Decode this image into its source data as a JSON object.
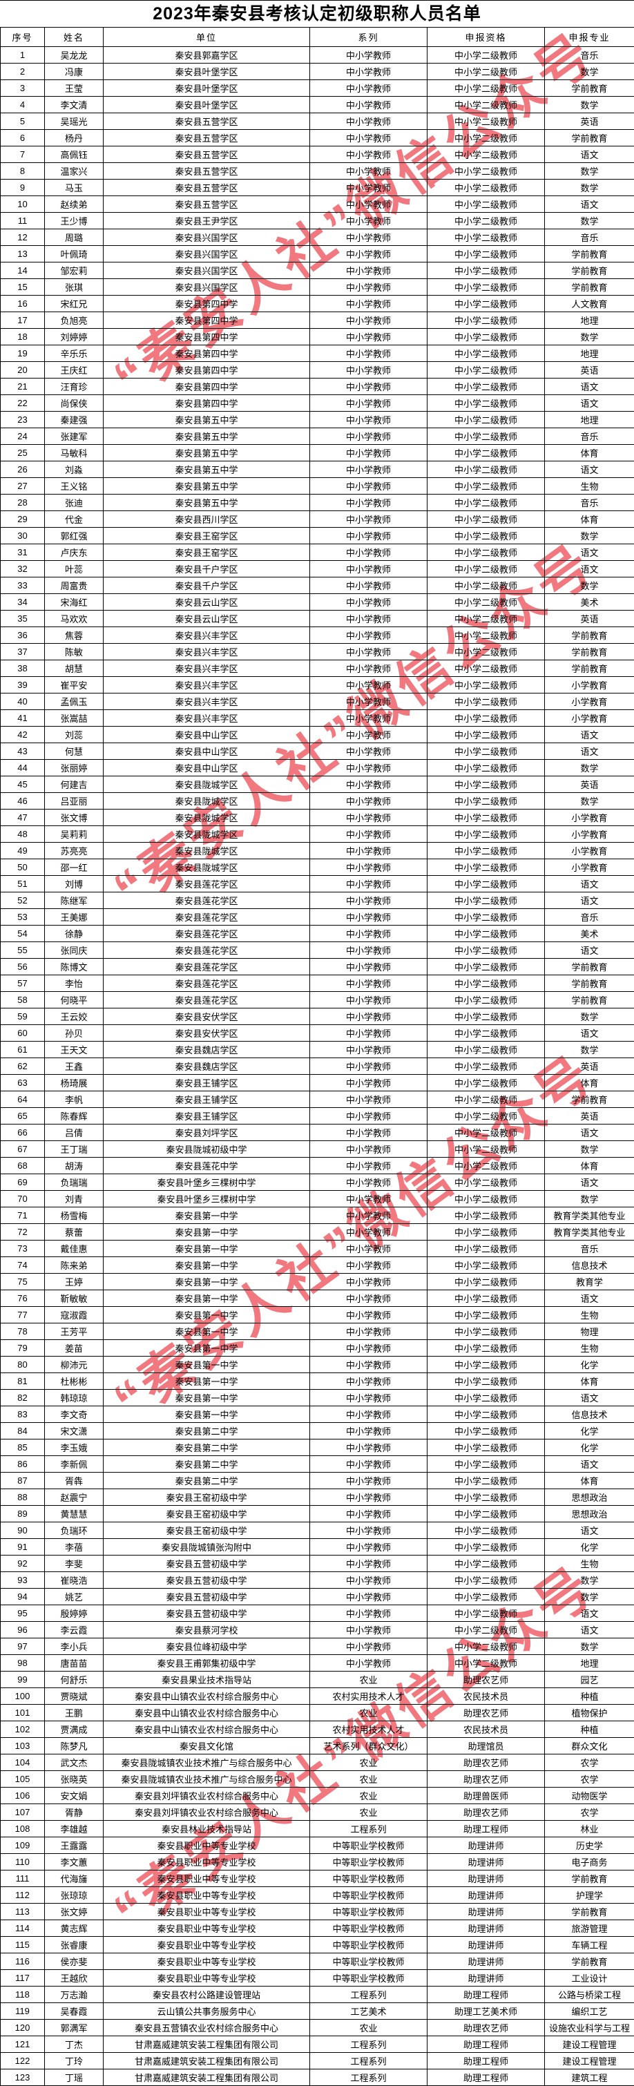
{
  "page": {
    "title": "2023年秦安县考核认定初级职称人员名单"
  },
  "watermark": {
    "text": "“秦安人社”微信公众号",
    "color": "#f05a64"
  },
  "table": {
    "columns": [
      "序号",
      "姓名",
      "单位",
      "系列",
      "申报资格",
      "申报专业"
    ],
    "rows": [
      [
        "1",
        "吴龙龙",
        "秦安县郭嘉学区",
        "中小学教师",
        "中小学二级教师",
        "音乐"
      ],
      [
        "2",
        "冯康",
        "秦安县叶堡学区",
        "中小学教师",
        "中小学二级教师",
        "数学"
      ],
      [
        "3",
        "王莹",
        "秦安县叶堡学区",
        "中小学教师",
        "中小学二级教师",
        "学前教育"
      ],
      [
        "4",
        "李文清",
        "秦安县叶堡学区",
        "中小学教师",
        "中小学二级教师",
        "数学"
      ],
      [
        "5",
        "吴瑶光",
        "秦安县五营学区",
        "中小学教师",
        "中小学二级教师",
        "英语"
      ],
      [
        "6",
        "杨丹",
        "秦安县五营学区",
        "中小学教师",
        "中小学二级教师",
        "学前教育"
      ],
      [
        "7",
        "高佩钰",
        "秦安县五营学区",
        "中小学教师",
        "中小学二级教师",
        "语文"
      ],
      [
        "8",
        "温家兴",
        "秦安县五营学区",
        "中小学教师",
        "中小学二级教师",
        "数学"
      ],
      [
        "9",
        "马玉",
        "秦安县五营学区",
        "中小学教师",
        "中小学二级教师",
        "数学"
      ],
      [
        "10",
        "赵续弟",
        "秦安县五营学区",
        "中小学教师",
        "中小学二级教师",
        "语文"
      ],
      [
        "11",
        "王少博",
        "秦安县王尹学区",
        "中小学教师",
        "中小学二级教师",
        "数学"
      ],
      [
        "12",
        "周璐",
        "秦安县兴国学区",
        "中小学教师",
        "中小学二级教师",
        "音乐"
      ],
      [
        "13",
        "叶佩琦",
        "秦安县兴国学区",
        "中小学教师",
        "中小学二级教师",
        "学前教育"
      ],
      [
        "14",
        "邹宏莉",
        "秦安县兴国学区",
        "中小学教师",
        "中小学二级教师",
        "学前教育"
      ],
      [
        "15",
        "张琪",
        "秦安县兴国学区",
        "中小学教师",
        "中小学二级教师",
        "学前教育"
      ],
      [
        "16",
        "宋红兄",
        "秦安县第四中学",
        "中小学教师",
        "中小学二级教师",
        "人文教育"
      ],
      [
        "17",
        "负旭亮",
        "秦安县第四中学",
        "中小学教师",
        "中小学二级教师",
        "地理"
      ],
      [
        "18",
        "刘婷婷",
        "秦安县第四中学",
        "中小学教师",
        "中小学二级教师",
        "数学"
      ],
      [
        "19",
        "辛乐乐",
        "秦安县第四中学",
        "中小学教师",
        "中小学二级教师",
        "地理"
      ],
      [
        "20",
        "王庆红",
        "秦安县第四中学",
        "中小学教师",
        "中小学二级教师",
        "英语"
      ],
      [
        "21",
        "汪育珍",
        "秦安县第四中学",
        "中小学教师",
        "中小学二级教师",
        "语文"
      ],
      [
        "22",
        "尚保侠",
        "秦安县第四中学",
        "中小学教师",
        "中小学二级教师",
        "语文"
      ],
      [
        "23",
        "秦建强",
        "秦安县第五中学",
        "中小学教师",
        "中小学二级教师",
        "地理"
      ],
      [
        "24",
        "张建军",
        "秦安县第五中学",
        "中小学教师",
        "中小学二级教师",
        "音乐"
      ],
      [
        "25",
        "马敏科",
        "秦安县第五中学",
        "中小学教师",
        "中小学二级教师",
        "体育"
      ],
      [
        "26",
        "刘淼",
        "秦安县第五中学",
        "中小学教师",
        "中小学二级教师",
        "语文"
      ],
      [
        "27",
        "王义铭",
        "秦安县第五中学",
        "中小学教师",
        "中小学二级教师",
        "生物"
      ],
      [
        "28",
        "张迪",
        "秦安县第五中学",
        "中小学教师",
        "中小学二级教师",
        "音乐"
      ],
      [
        "29",
        "代金",
        "秦安县西川学区",
        "中小学教师",
        "中小学二级教师",
        "体育"
      ],
      [
        "30",
        "郭红强",
        "秦安县王窑学区",
        "中小学教师",
        "中小学二级教师",
        "数学"
      ],
      [
        "31",
        "卢庆东",
        "秦安县王窑学区",
        "中小学教师",
        "中小学二级教师",
        "语文"
      ],
      [
        "32",
        "叶蕊",
        "秦安县千户学区",
        "中小学教师",
        "中小学二级教师",
        "语文"
      ],
      [
        "33",
        "周富贵",
        "秦安县千户学区",
        "中小学教师",
        "中小学二级教师",
        "数学"
      ],
      [
        "34",
        "宋海红",
        "秦安县云山学区",
        "中小学教师",
        "中小学二级教师",
        "美术"
      ],
      [
        "35",
        "马欢欢",
        "秦安县云山学区",
        "中小学教师",
        "中小学二级教师",
        "英语"
      ],
      [
        "36",
        "焦蓉",
        "秦安县兴丰学区",
        "中小学教师",
        "中小学二级教师",
        "学前教育"
      ],
      [
        "37",
        "陈敏",
        "秦安县兴丰学区",
        "中小学教师",
        "中小学二级教师",
        "学前教育"
      ],
      [
        "38",
        "胡慧",
        "秦安县兴丰学区",
        "中小学教师",
        "中小学二级教师",
        "学前教育"
      ],
      [
        "39",
        "崔平安",
        "秦安县兴丰学区",
        "中小学教师",
        "中小学二级教师",
        "小学教育"
      ],
      [
        "40",
        "孟佩玉",
        "秦安县兴丰学区",
        "中小学教师",
        "中小学二级教师",
        "小学教育"
      ],
      [
        "41",
        "张嵩喆",
        "秦安县兴丰学区",
        "中小学教师",
        "中小学二级教师",
        "小学教育"
      ],
      [
        "42",
        "刘蕊",
        "秦安县中山学区",
        "中小学教师",
        "中小学二级教师",
        "语文"
      ],
      [
        "43",
        "何慧",
        "秦安县中山学区",
        "中小学教师",
        "中小学二级教师",
        "语文"
      ],
      [
        "44",
        "张丽婷",
        "秦安县中山学区",
        "中小学教师",
        "中小学二级教师",
        "数学"
      ],
      [
        "45",
        "何建吉",
        "秦安县陇城学区",
        "中小学教师",
        "中小学二级教师",
        "英语"
      ],
      [
        "46",
        "吕亚丽",
        "秦安县陇城学区",
        "中小学教师",
        "中小学二级教师",
        "数学"
      ],
      [
        "47",
        "张文博",
        "秦安县陇城学区",
        "中小学教师",
        "中小学二级教师",
        "小学教育"
      ],
      [
        "48",
        "吴莉莉",
        "秦安县陇城学区",
        "中小学教师",
        "中小学二级教师",
        "小学教育"
      ],
      [
        "49",
        "苏亮亮",
        "秦安县陇城学区",
        "中小学教师",
        "中小学二级教师",
        "小学教育"
      ],
      [
        "50",
        "邵一红",
        "秦安县陇城学区",
        "中小学教师",
        "中小学二级教师",
        "小学教育"
      ],
      [
        "51",
        "刘博",
        "秦安县莲花学区",
        "中小学教师",
        "中小学二级教师",
        "语文"
      ],
      [
        "52",
        "陈继军",
        "秦安县莲花学区",
        "中小学教师",
        "中小学二级教师",
        "语文"
      ],
      [
        "53",
        "王美娜",
        "秦安县莲花学区",
        "中小学教师",
        "中小学二级教师",
        "音乐"
      ],
      [
        "54",
        "徐静",
        "秦安县莲花学区",
        "中小学教师",
        "中小学二级教师",
        "美术"
      ],
      [
        "55",
        "张同庆",
        "秦安县莲花学区",
        "中小学教师",
        "中小学二级教师",
        "语文"
      ],
      [
        "56",
        "陈博文",
        "秦安县莲花学区",
        "中小学教师",
        "中小学二级教师",
        "学前教育"
      ],
      [
        "57",
        "李怡",
        "秦安县莲花学区",
        "中小学教师",
        "中小学二级教师",
        "学前教育"
      ],
      [
        "58",
        "何晓平",
        "秦安县莲花学区",
        "中小学教师",
        "中小学二级教师",
        "学前教育"
      ],
      [
        "59",
        "王云姣",
        "秦安县安伏学区",
        "中小学教师",
        "中小学二级教师",
        "数学"
      ],
      [
        "60",
        "孙贝",
        "秦安县安伏学区",
        "中小学教师",
        "中小学二级教师",
        "语文"
      ],
      [
        "61",
        "王天文",
        "秦安县魏店学区",
        "中小学教师",
        "中小学二级教师",
        "数学"
      ],
      [
        "62",
        "王鑫",
        "秦安县魏店学区",
        "中小学教师",
        "中小学二级教师",
        "英语"
      ],
      [
        "63",
        "杨琦展",
        "秦安县王铺学区",
        "中小学教师",
        "中小学二级教师",
        "体育"
      ],
      [
        "64",
        "李帆",
        "秦安县王铺学区",
        "中小学教师",
        "中小学二级教师",
        "学前教育"
      ],
      [
        "65",
        "陈春辉",
        "秦安县王铺学区",
        "中小学教师",
        "中小学二级教师",
        "英语"
      ],
      [
        "66",
        "吕倩",
        "秦安县刘坪学区",
        "中小学教师",
        "中小学二级教师",
        "语文"
      ],
      [
        "67",
        "王丁瑞",
        "秦安县陇城初级中学",
        "中小学教师",
        "中小学二级教师",
        "数学"
      ],
      [
        "68",
        "胡涛",
        "秦安县莲花中学",
        "中小学教师",
        "中小学二级教师",
        "体育"
      ],
      [
        "69",
        "负瑞瑞",
        "秦安县叶堡乡三棵树中学",
        "中小学教师",
        "中小学二级教师",
        "语文"
      ],
      [
        "70",
        "刘青",
        "秦安县叶堡乡三棵树中学",
        "中小学教师",
        "中小学二级教师",
        "数学"
      ],
      [
        "71",
        "杨雪梅",
        "秦安县第一中学",
        "中小学教师",
        "中小学二级教师",
        "教育学类其他专业"
      ],
      [
        "72",
        "蔡蕾",
        "秦安县第一中学",
        "中小学教师",
        "中小学二级教师",
        "教育学类其他专业"
      ],
      [
        "73",
        "戴佳惠",
        "秦安县第一中学",
        "中小学教师",
        "中小学二级教师",
        "音乐"
      ],
      [
        "74",
        "陈来弟",
        "秦安县第一中学",
        "中小学教师",
        "中小学二级教师",
        "信息技术"
      ],
      [
        "75",
        "王婷",
        "秦安县第一中学",
        "中小学教师",
        "中小学二级教师",
        "教育学"
      ],
      [
        "76",
        "靳敏敏",
        "秦安县第一中学",
        "中小学教师",
        "中小学二级教师",
        "语文"
      ],
      [
        "77",
        "寇淑霞",
        "秦安县第一中学",
        "中小学教师",
        "中小学二级教师",
        "生物"
      ],
      [
        "78",
        "王芳平",
        "秦安县第一中学",
        "中小学教师",
        "中小学二级教师",
        "物理"
      ],
      [
        "79",
        "姜苗",
        "秦安县第一中学",
        "中小学教师",
        "中小学二级教师",
        "生物"
      ],
      [
        "80",
        "柳沛元",
        "秦安县第一中学",
        "中小学教师",
        "中小学二级教师",
        "化学"
      ],
      [
        "81",
        "杜彬彬",
        "秦安县第一中学",
        "中小学教师",
        "中小学二级教师",
        "体育"
      ],
      [
        "82",
        "韩琼琼",
        "秦安县第一中学",
        "中小学教师",
        "中小学二级教师",
        "语文"
      ],
      [
        "83",
        "李文奇",
        "秦安县第一中学",
        "中小学教师",
        "中小学二级教师",
        "信息技术"
      ],
      [
        "84",
        "宋文潇",
        "秦安县第二中学",
        "中小学教师",
        "中小学二级教师",
        "化学"
      ],
      [
        "85",
        "李玉娥",
        "秦安县第二中学",
        "中小学教师",
        "中小学二级教师",
        "化学"
      ],
      [
        "86",
        "李新佩",
        "秦安县第二中学",
        "中小学教师",
        "中小学二级教师",
        "语文"
      ],
      [
        "87",
        "胥犇",
        "秦安县第二中学",
        "中小学教师",
        "中小学二级教师",
        "体育"
      ],
      [
        "88",
        "赵震宁",
        "秦安县王窑初级中学",
        "中小学教师",
        "中小学二级教师",
        "思想政治"
      ],
      [
        "89",
        "黄慧慧",
        "秦安县王窑初级中学",
        "中小学教师",
        "中小学二级教师",
        "思想政治"
      ],
      [
        "90",
        "负瑞环",
        "秦安县王窑初级中学",
        "中小学教师",
        "中小学二级教师",
        "语文"
      ],
      [
        "91",
        "李蓓",
        "秦安县陇城镇张沟附中",
        "中小学教师",
        "中小学二级教师",
        "化学"
      ],
      [
        "92",
        "李斐",
        "秦安县五营初级中学",
        "中小学教师",
        "中小学二级教师",
        "生物"
      ],
      [
        "93",
        "崔晓浩",
        "秦安县五营初级中学",
        "中小学教师",
        "中小学二级教师",
        "数学"
      ],
      [
        "94",
        "姚艺",
        "秦安县五营初级中学",
        "中小学教师",
        "中小学二级教师",
        "数学"
      ],
      [
        "95",
        "殷婷婷",
        "秦安县五营初级中学",
        "中小学教师",
        "中小学二级教师",
        "语文"
      ],
      [
        "96",
        "李云霞",
        "秦安县蔡河学校",
        "中小学教师",
        "中小学二级教师",
        "语文"
      ],
      [
        "97",
        "李小兵",
        "秦安县位峰初级中学",
        "中小学教师",
        "中小学二级教师",
        "数学"
      ],
      [
        "98",
        "唐苗苗",
        "秦安县王甫郭集初级中学",
        "中小学教师",
        "中小学二级教师",
        "地理"
      ],
      [
        "99",
        "何舒乐",
        "秦安县果业技术指导站",
        "农业",
        "助理农艺师",
        "园艺"
      ],
      [
        "100",
        "贾晓斌",
        "秦安县中山镇农业农村综合服务中心",
        "农村实用技术人才",
        "农民技术员",
        "种植"
      ],
      [
        "101",
        "王鹏",
        "秦安县中山镇农业农村综合服务中心",
        "农业",
        "助理农艺师",
        "植物保护"
      ],
      [
        "102",
        "贾满成",
        "秦安县中山镇农业农村综合服务中心",
        "农村实用技术人才",
        "农民技术员",
        "种植"
      ],
      [
        "103",
        "陈梦凡",
        "秦安县文化馆",
        "艺术系列（群众文化）",
        "助理馆员",
        "群众文化"
      ],
      [
        "104",
        "武文杰",
        "秦安县陇城镇农业技术推广与综合服务中心",
        "农业",
        "助理农艺师",
        "农学"
      ],
      [
        "105",
        "张晓英",
        "秦安县陇城镇农业技术推广与综合服务中心",
        "农业",
        "助理农艺师",
        "农学"
      ],
      [
        "106",
        "安文娟",
        "秦安县刘坪镇农业农村综合服务中心",
        "农业",
        "助理兽医师",
        "动物医学"
      ],
      [
        "107",
        "胥静",
        "秦安县刘坪镇农业农村综合服务中心",
        "农业",
        "助理农艺师",
        "农学"
      ],
      [
        "108",
        "李雄越",
        "秦安县林业技术指导站",
        "工程系列",
        "助理工程师",
        "林业"
      ],
      [
        "109",
        "王露露",
        "秦安县职业中等专业学校",
        "中等职业学校教师",
        "助理讲师",
        "历史学"
      ],
      [
        "110",
        "李文蕙",
        "秦安县职业中等专业学校",
        "中等职业学校教师",
        "助理讲师",
        "电子商务"
      ],
      [
        "111",
        "代海旛",
        "秦安县职业中等专业学校",
        "中等职业学校教师",
        "助理讲师",
        "学前教育"
      ],
      [
        "112",
        "张琼琼",
        "秦安县职业中等专业学校",
        "中等职业学校教师",
        "助理讲师",
        "护理学"
      ],
      [
        "113",
        "张文婷",
        "秦安县职业中等专业学校",
        "中等职业学校教师",
        "助理讲师",
        "学前教育"
      ],
      [
        "114",
        "黄志辉",
        "秦安县职业中等专业学校",
        "中等职业学校教师",
        "助理讲师",
        "旅游管理"
      ],
      [
        "115",
        "张睿康",
        "秦安县职业中等专业学校",
        "中等职业学校教师",
        "助理讲师",
        "车辆工程"
      ],
      [
        "116",
        "侯亦斐",
        "秦安县职业中等专业学校",
        "中等职业学校教师",
        "助理讲师",
        "学前教育"
      ],
      [
        "117",
        "王越欣",
        "秦安县职业中等专业学校",
        "中等职业学校教师",
        "助理讲师",
        "工业设计"
      ],
      [
        "118",
        "万志瀚",
        "秦安县农村公路建设管理站",
        "工程系列",
        "助理工程师",
        "公路与桥梁工程"
      ],
      [
        "119",
        "吴春霞",
        "云山镇公共事务服务中心",
        "工艺美术",
        "助理工艺美术师",
        "编织工艺"
      ],
      [
        "120",
        "郭满军",
        "秦安县五营镇农业农村综合服务中心",
        "农业",
        "助理农艺师",
        "设施农业科学与工程"
      ],
      [
        "121",
        "丁杰",
        "甘肃嘉威建筑安装工程集团有限公司",
        "工程系列",
        "助理工程师",
        "建设工程管理"
      ],
      [
        "122",
        "丁玲",
        "甘肃嘉威建筑安装工程集团有限公司",
        "工程系列",
        "助理工程师",
        "建设工程管理"
      ],
      [
        "123",
        "丁瑶",
        "甘肃嘉威建筑安装工程集团有限公司",
        "工程系列",
        "助理工程师",
        "建筑工程"
      ]
    ]
  }
}
